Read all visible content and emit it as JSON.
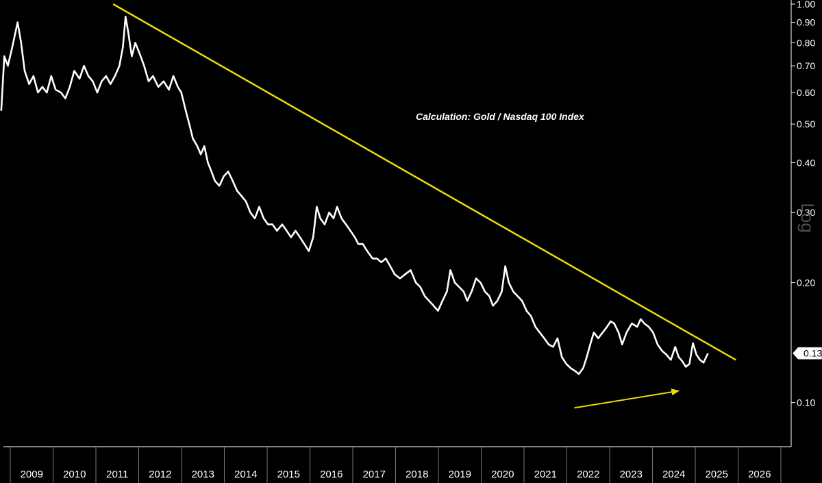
{
  "chart_data": {
    "type": "line",
    "title": "",
    "annotation": "Calculation: Gold / Nasdaq 100 Index",
    "y_scale_label": "Log",
    "yscale": "log",
    "ylim": [
      0.088,
      1.0
    ],
    "xlim": [
      2008.6,
      2026.4
    ],
    "y_ticks": [
      {
        "value": 1.0,
        "label": "1.00"
      },
      {
        "value": 0.9,
        "label": "0.90"
      },
      {
        "value": 0.8,
        "label": "0.80"
      },
      {
        "value": 0.7,
        "label": "0.70"
      },
      {
        "value": 0.6,
        "label": "0.60"
      },
      {
        "value": 0.5,
        "label": "0.50"
      },
      {
        "value": 0.4,
        "label": "0.40"
      },
      {
        "value": 0.3,
        "label": "0.30"
      },
      {
        "value": 0.2,
        "label": "0.20"
      },
      {
        "value": 0.1,
        "label": "0.10"
      }
    ],
    "x_ticks": [
      "2009",
      "2010",
      "2011",
      "2012",
      "2013",
      "2014",
      "2015",
      "2016",
      "2017",
      "2018",
      "2019",
      "2020",
      "2021",
      "2022",
      "2023",
      "2024",
      "2025",
      "2026"
    ],
    "last_value": {
      "value": 0.133,
      "label": "0.13"
    },
    "series": [
      {
        "name": "Gold / Nasdaq 100 Index",
        "color": "#ffffff",
        "points": [
          [
            2008.55,
            0.54
          ],
          [
            2008.62,
            0.74
          ],
          [
            2008.7,
            0.7
          ],
          [
            2008.8,
            0.78
          ],
          [
            2008.92,
            0.9
          ],
          [
            2009.0,
            0.8
          ],
          [
            2009.08,
            0.68
          ],
          [
            2009.18,
            0.63
          ],
          [
            2009.28,
            0.66
          ],
          [
            2009.38,
            0.6
          ],
          [
            2009.48,
            0.62
          ],
          [
            2009.58,
            0.6
          ],
          [
            2009.68,
            0.66
          ],
          [
            2009.78,
            0.61
          ],
          [
            2009.9,
            0.6
          ],
          [
            2010.0,
            0.58
          ],
          [
            2010.1,
            0.62
          ],
          [
            2010.2,
            0.68
          ],
          [
            2010.32,
            0.65
          ],
          [
            2010.42,
            0.7
          ],
          [
            2010.52,
            0.66
          ],
          [
            2010.62,
            0.64
          ],
          [
            2010.72,
            0.6
          ],
          [
            2010.82,
            0.64
          ],
          [
            2010.92,
            0.66
          ],
          [
            2011.02,
            0.63
          ],
          [
            2011.12,
            0.66
          ],
          [
            2011.22,
            0.7
          ],
          [
            2011.3,
            0.78
          ],
          [
            2011.36,
            0.93
          ],
          [
            2011.42,
            0.85
          ],
          [
            2011.5,
            0.74
          ],
          [
            2011.58,
            0.8
          ],
          [
            2011.68,
            0.75
          ],
          [
            2011.78,
            0.7
          ],
          [
            2011.88,
            0.64
          ],
          [
            2011.98,
            0.66
          ],
          [
            2012.1,
            0.62
          ],
          [
            2012.22,
            0.64
          ],
          [
            2012.34,
            0.61
          ],
          [
            2012.44,
            0.66
          ],
          [
            2012.54,
            0.62
          ],
          [
            2012.62,
            0.6
          ],
          [
            2012.72,
            0.54
          ],
          [
            2012.8,
            0.5
          ],
          [
            2012.88,
            0.46
          ],
          [
            2012.98,
            0.44
          ],
          [
            2013.06,
            0.42
          ],
          [
            2013.14,
            0.44
          ],
          [
            2013.22,
            0.4
          ],
          [
            2013.3,
            0.38
          ],
          [
            2013.38,
            0.36
          ],
          [
            2013.48,
            0.35
          ],
          [
            2013.58,
            0.37
          ],
          [
            2013.68,
            0.38
          ],
          [
            2013.78,
            0.36
          ],
          [
            2013.88,
            0.34
          ],
          [
            2013.98,
            0.33
          ],
          [
            2014.08,
            0.32
          ],
          [
            2014.18,
            0.3
          ],
          [
            2014.28,
            0.29
          ],
          [
            2014.38,
            0.31
          ],
          [
            2014.48,
            0.29
          ],
          [
            2014.58,
            0.28
          ],
          [
            2014.68,
            0.28
          ],
          [
            2014.78,
            0.27
          ],
          [
            2014.9,
            0.28
          ],
          [
            2015.0,
            0.27
          ],
          [
            2015.1,
            0.26
          ],
          [
            2015.2,
            0.27
          ],
          [
            2015.3,
            0.26
          ],
          [
            2015.4,
            0.25
          ],
          [
            2015.5,
            0.24
          ],
          [
            2015.6,
            0.26
          ],
          [
            2015.68,
            0.31
          ],
          [
            2015.76,
            0.29
          ],
          [
            2015.86,
            0.28
          ],
          [
            2015.96,
            0.3
          ],
          [
            2016.06,
            0.29
          ],
          [
            2016.14,
            0.31
          ],
          [
            2016.24,
            0.29
          ],
          [
            2016.34,
            0.28
          ],
          [
            2016.44,
            0.27
          ],
          [
            2016.54,
            0.26
          ],
          [
            2016.62,
            0.25
          ],
          [
            2016.72,
            0.25
          ],
          [
            2016.82,
            0.24
          ],
          [
            2016.94,
            0.23
          ],
          [
            2017.04,
            0.23
          ],
          [
            2017.14,
            0.225
          ],
          [
            2017.24,
            0.23
          ],
          [
            2017.34,
            0.22
          ],
          [
            2017.44,
            0.21
          ],
          [
            2017.56,
            0.205
          ],
          [
            2017.68,
            0.21
          ],
          [
            2017.8,
            0.215
          ],
          [
            2017.92,
            0.2
          ],
          [
            2018.02,
            0.195
          ],
          [
            2018.12,
            0.185
          ],
          [
            2018.22,
            0.18
          ],
          [
            2018.32,
            0.175
          ],
          [
            2018.42,
            0.17
          ],
          [
            2018.52,
            0.18
          ],
          [
            2018.62,
            0.19
          ],
          [
            2018.7,
            0.215
          ],
          [
            2018.8,
            0.2
          ],
          [
            2018.9,
            0.195
          ],
          [
            2019.0,
            0.19
          ],
          [
            2019.08,
            0.18
          ],
          [
            2019.18,
            0.19
          ],
          [
            2019.28,
            0.205
          ],
          [
            2019.38,
            0.2
          ],
          [
            2019.48,
            0.19
          ],
          [
            2019.58,
            0.185
          ],
          [
            2019.66,
            0.175
          ],
          [
            2019.76,
            0.18
          ],
          [
            2019.86,
            0.19
          ],
          [
            2019.94,
            0.22
          ],
          [
            2020.02,
            0.2
          ],
          [
            2020.12,
            0.19
          ],
          [
            2020.22,
            0.185
          ],
          [
            2020.32,
            0.18
          ],
          [
            2020.42,
            0.17
          ],
          [
            2020.52,
            0.165
          ],
          [
            2020.62,
            0.155
          ],
          [
            2020.72,
            0.15
          ],
          [
            2020.82,
            0.145
          ],
          [
            2020.92,
            0.14
          ],
          [
            2021.02,
            0.138
          ],
          [
            2021.12,
            0.145
          ],
          [
            2021.22,
            0.13
          ],
          [
            2021.32,
            0.125
          ],
          [
            2021.42,
            0.122
          ],
          [
            2021.52,
            0.12
          ],
          [
            2021.6,
            0.118
          ],
          [
            2021.7,
            0.122
          ],
          [
            2021.78,
            0.13
          ],
          [
            2021.86,
            0.14
          ],
          [
            2021.94,
            0.15
          ],
          [
            2022.04,
            0.145
          ],
          [
            2022.14,
            0.15
          ],
          [
            2022.24,
            0.155
          ],
          [
            2022.32,
            0.16
          ],
          [
            2022.4,
            0.158
          ],
          [
            2022.5,
            0.15
          ],
          [
            2022.58,
            0.14
          ],
          [
            2022.68,
            0.15
          ],
          [
            2022.8,
            0.158
          ],
          [
            2022.92,
            0.155
          ],
          [
            2023.0,
            0.162
          ],
          [
            2023.08,
            0.158
          ],
          [
            2023.18,
            0.155
          ],
          [
            2023.28,
            0.15
          ],
          [
            2023.38,
            0.14
          ],
          [
            2023.48,
            0.135
          ],
          [
            2023.58,
            0.132
          ],
          [
            2023.68,
            0.128
          ],
          [
            2023.78,
            0.138
          ],
          [
            2023.86,
            0.13
          ],
          [
            2023.94,
            0.127
          ],
          [
            2024.02,
            0.123
          ],
          [
            2024.1,
            0.125
          ],
          [
            2024.18,
            0.141
          ],
          [
            2024.26,
            0.132
          ],
          [
            2024.34,
            0.128
          ],
          [
            2024.42,
            0.126
          ],
          [
            2024.52,
            0.133
          ]
        ]
      }
    ],
    "trendlines": [
      {
        "name": "Falling resistance trendline",
        "color": "#e8de00",
        "from": [
          2011.08,
          1.0
        ],
        "to": [
          2025.15,
          0.128
        ]
      },
      {
        "name": "Rising lows arrow",
        "color": "#e8de00",
        "from": [
          2021.5,
          0.097
        ],
        "to": [
          2023.85,
          0.107
        ],
        "arrow": true
      }
    ]
  }
}
